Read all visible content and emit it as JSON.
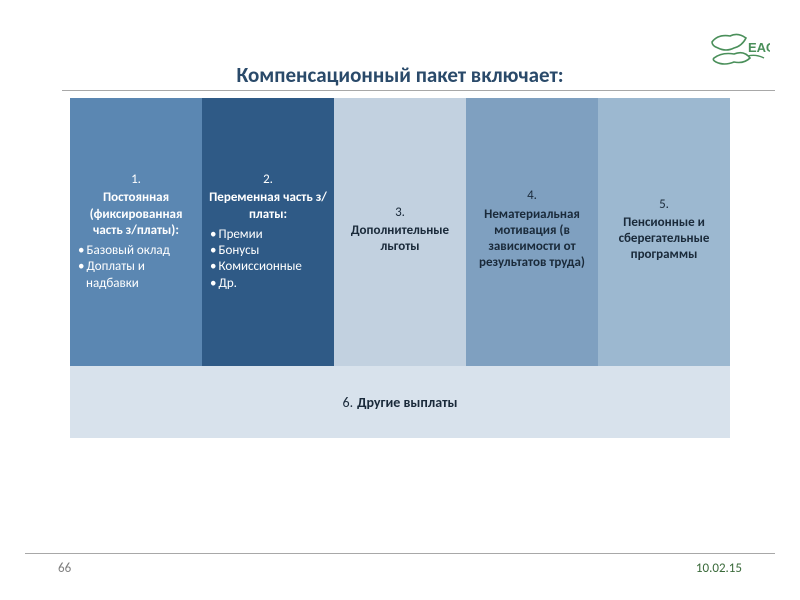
{
  "title": {
    "text": "Компенсационный пакет включает:",
    "color": "#2a4a6a",
    "fontsize": 21
  },
  "logo": {
    "text": "ЕАОИ",
    "color": "#4a8f5a"
  },
  "columns": [
    {
      "num": "1.",
      "title": "Постоянная (фиксированная часть з/платы):",
      "items": [
        "Базовый оклад",
        "Доплаты и надбавки"
      ],
      "bg": "#5b87b2",
      "fg": "#ffffff"
    },
    {
      "num": "2.",
      "title": "Переменная часть з/платы:",
      "items": [
        "Премии",
        "Бонусы",
        "Комиссионные",
        "Др."
      ],
      "bg": "#2f5a86",
      "fg": "#ffffff"
    },
    {
      "num": "3.",
      "title": "Дополнительные льготы",
      "items": [],
      "bg": "#c2d1e0",
      "fg": "#1a2a3a"
    },
    {
      "num": "4.",
      "title": "Нематериальная мотивация (в зависимости от результатов труда)",
      "items": [],
      "bg": "#7fa0c0",
      "fg": "#1a2a3a"
    },
    {
      "num": "5.",
      "title": "Пенсионные и сберегательные программы",
      "items": [],
      "bg": "#9cb8d0",
      "fg": "#1a2a3a"
    }
  ],
  "bottom": {
    "num": "6.",
    "label": "Другие выплаты",
    "bg": "#d8e2ec",
    "fg": "#1a2a3a"
  },
  "footer": {
    "page": "66",
    "page_color": "#7f7f7f",
    "date": "10.02.15",
    "date_color": "#3a6a3a"
  },
  "layout": {
    "column_fontsize": 13,
    "bottom_fontsize": 14
  }
}
